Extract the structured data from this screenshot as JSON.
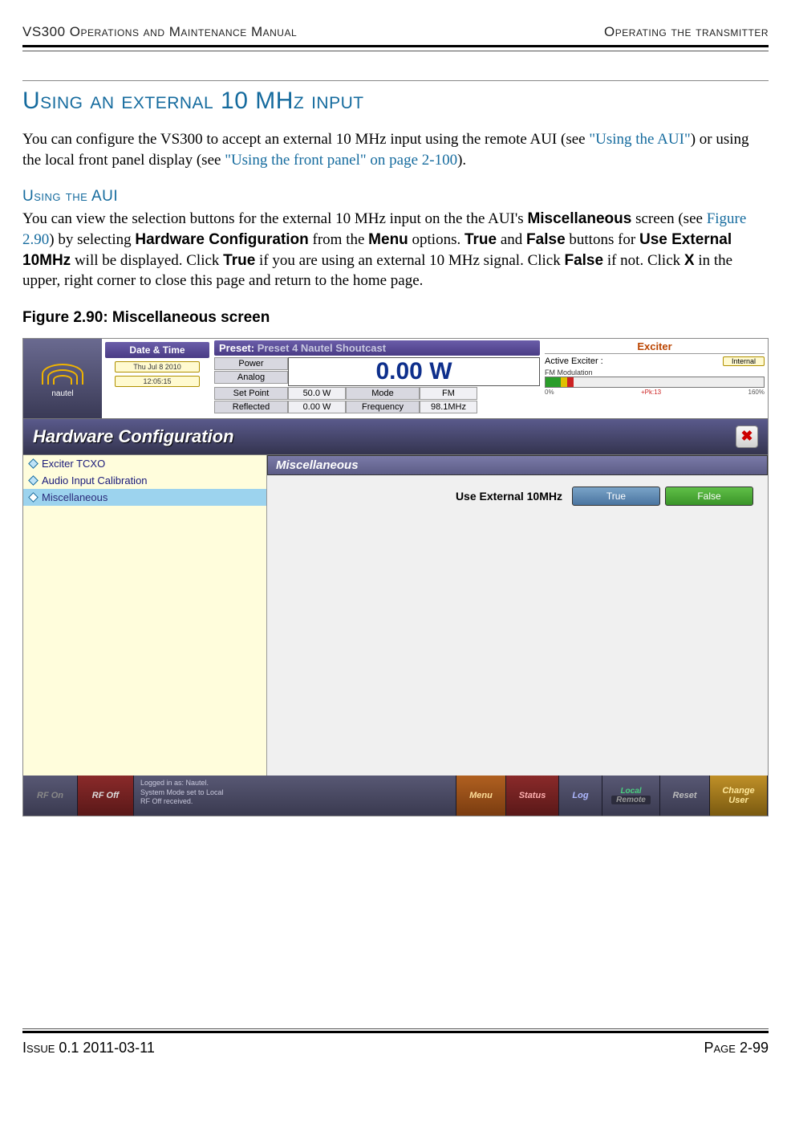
{
  "header": {
    "left": "VS300 Operations and Maintenance Manual",
    "right": "Operating the transmitter"
  },
  "h1": "Using an external 10 MHz input",
  "intro": {
    "p1a": "You can configure the VS300 to accept an external 10 MHz input using the remote AUI (see ",
    "p1link1": "\"Using the AUI\"",
    "p1b": ") or using the local front panel display (see ",
    "p1link2": "\"Using the front panel\" on page 2-100",
    "p1c": ")."
  },
  "h2": "Using the AUI",
  "para2": {
    "a": "You can view the selection buttons for the external 10 MHz input on the the AUI's ",
    "b": "Miscellaneous",
    "c": " screen (see ",
    "d": "Figure 2.90",
    "e": ") by selecting ",
    "f": "Hardware Configuration",
    "g": " from the ",
    "h": "Menu",
    "i": " options. ",
    "j": "True",
    "k": " and ",
    "l": "False",
    "m": " buttons for ",
    "n": "Use External 10MHz",
    "o": " will be displayed. Click ",
    "p": "True",
    "q": " if you are using an external 10 MHz signal. Click ",
    "r": "False",
    "s": " if not. Click ",
    "t": "X",
    "u": " in the upper, right corner to close this page and return to the home page."
  },
  "figcap": "Figure 2.90: Miscellaneous screen",
  "ui": {
    "logo": "nautel",
    "dt": {
      "title": "Date & Time",
      "date": "Thu Jul 8 2010",
      "time": "12:05:15"
    },
    "preset": {
      "label": "Preset:",
      "value": "Preset 4 Nautel Shoutcast"
    },
    "power": {
      "col1": [
        "Power",
        "Analog",
        "Set Point",
        "Reflected"
      ],
      "big": "0.00 W",
      "r2l": [
        "50.0 W",
        "0.00 W"
      ],
      "r2m": [
        "Mode",
        "Frequency"
      ],
      "r2r": [
        "FM",
        "98.1MHz"
      ]
    },
    "exciter": {
      "title": "Exciter",
      "active_lbl": "Active Exciter :",
      "active_val": "Internal",
      "fm_lbl": "FM Modulation",
      "ticks": {
        "t0": "0%",
        "pk": "+Pk:13",
        "t1": "160%"
      }
    },
    "hc": {
      "title": "Hardware Configuration",
      "close": "✖",
      "nav": [
        "Exciter TCXO",
        "Audio Input Calibration",
        "Miscellaneous"
      ],
      "misc_title": "Miscellaneous",
      "row_lbl": "Use External 10MHz",
      "true": "True",
      "false": "False"
    },
    "bbar": {
      "rfon": "RF On",
      "rfoff": "RF Off",
      "login1": "Logged in as:   Nautel.",
      "login2": "System Mode set to Local",
      "login3": "RF Off received.",
      "menu": "Menu",
      "status": "Status",
      "log": "Log",
      "local": "Local",
      "remote": "Remote",
      "reset": "Reset",
      "cu1": "Change",
      "cu2": "User"
    }
  },
  "footer": {
    "left": "Issue 0.1  2011-03-11",
    "right": "Page 2-99"
  }
}
